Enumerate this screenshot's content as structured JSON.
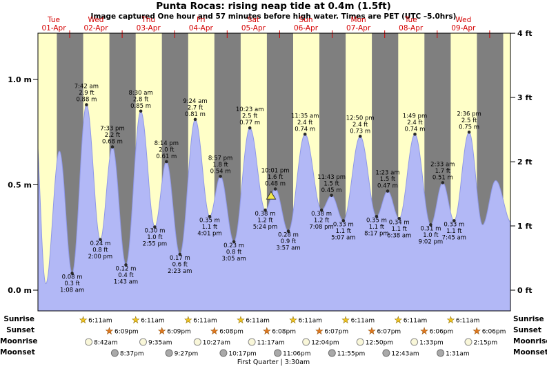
{
  "title": "Punta Rocas: rising  neap tide at 0.4m (1.5ft)",
  "subtitle": "Image captured One hour and 57 minutes before high water. Times are PET (UTC –5.0hrs)",
  "colors": {
    "night_band": "#7f7f7f",
    "day_band": "#ffffc8",
    "tide_fill": "#b2b8f6",
    "tide_stroke": "#8f98e8",
    "day_label_red": "#d40000",
    "text": "#000000",
    "marker_yellow": "#f2e84b",
    "sunrise_star": "#f0c420",
    "sunset_star": "#e07820",
    "moonrise_circle": "#f9f7d9",
    "moonset_circle": "#a9a9a9"
  },
  "chart_data": {
    "type": "area",
    "title": "Punta Rocas tide heights",
    "x_axis": {
      "days": [
        {
          "name": "Tue",
          "date": "01-Apr"
        },
        {
          "name": "Wed",
          "date": "02-Apr"
        },
        {
          "name": "Thu",
          "date": "03-Apr"
        },
        {
          "name": "Fri",
          "date": "04-Apr"
        },
        {
          "name": "Sat",
          "date": "05-Apr"
        },
        {
          "name": "Sun",
          "date": "06-Apr"
        },
        {
          "name": "Mon",
          "date": "07-Apr"
        },
        {
          "name": "Tue",
          "date": "08-Apr"
        },
        {
          "name": "Wed",
          "date": "09-Apr"
        }
      ]
    },
    "y_axis_left": {
      "unit": "m",
      "labels": [
        "0.0 m",
        "0.5 m",
        "1.0 m"
      ],
      "values": [
        0,
        0.5,
        1.0
      ]
    },
    "y_axis_right": {
      "unit": "ft",
      "labels": [
        "0 ft",
        "1 ft",
        "2 ft",
        "3 ft",
        "4 ft"
      ],
      "values": [
        0,
        1,
        2,
        3,
        4
      ]
    },
    "ylim_m": [
      -0.1,
      1.22
    ],
    "extremes": [
      {
        "day": 1,
        "time": "1:08 am",
        "type": "low",
        "m": 0.08,
        "ft": 0.3
      },
      {
        "day": 1,
        "time": "7:42 am",
        "type": "high",
        "m": 0.88,
        "ft": 2.9
      },
      {
        "day": 1,
        "time": "2:00 pm",
        "type": "low",
        "m": 0.24,
        "ft": 0.8
      },
      {
        "day": 1,
        "time": "7:33 pm",
        "type": "high",
        "m": 0.68,
        "ft": 2.2
      },
      {
        "day": 2,
        "time": "1:43 am",
        "type": "low",
        "m": 0.12,
        "ft": 0.4
      },
      {
        "day": 2,
        "time": "8:30 am",
        "type": "high",
        "m": 0.85,
        "ft": 2.8
      },
      {
        "day": 2,
        "time": "2:55 pm",
        "type": "low",
        "m": 0.3,
        "ft": 1.0
      },
      {
        "day": 2,
        "time": "8:14 pm",
        "type": "high",
        "m": 0.61,
        "ft": 2.0
      },
      {
        "day": 3,
        "time": "2:23 am",
        "type": "low",
        "m": 0.17,
        "ft": 0.6
      },
      {
        "day": 3,
        "time": "9:24 am",
        "type": "high",
        "m": 0.81,
        "ft": 2.7
      },
      {
        "day": 3,
        "time": "4:01 pm",
        "type": "low",
        "m": 0.35,
        "ft": 1.1
      },
      {
        "day": 3,
        "time": "8:57 pm",
        "type": "high",
        "m": 0.54,
        "ft": 1.8
      },
      {
        "day": 4,
        "time": "3:05 am",
        "type": "low",
        "m": 0.23,
        "ft": 0.8
      },
      {
        "day": 4,
        "time": "10:23 am",
        "type": "high",
        "m": 0.77,
        "ft": 2.5
      },
      {
        "day": 4,
        "time": "5:24 pm",
        "type": "low",
        "m": 0.38,
        "ft": 1.2
      },
      {
        "day": 4,
        "time": "10:01 pm",
        "type": "high",
        "m": 0.48,
        "ft": 1.6
      },
      {
        "day": 5,
        "time": "3:57 am",
        "type": "low",
        "m": 0.28,
        "ft": 0.9
      },
      {
        "day": 5,
        "time": "11:35 am",
        "type": "high",
        "m": 0.74,
        "ft": 2.4
      },
      {
        "day": 5,
        "time": "7:08 pm",
        "type": "low",
        "m": 0.38,
        "ft": 1.2
      },
      {
        "day": 5,
        "time": "11:43 pm",
        "type": "high",
        "m": 0.45,
        "ft": 1.5
      },
      {
        "day": 6,
        "time": "5:07 am",
        "type": "low",
        "m": 0.33,
        "ft": 1.1
      },
      {
        "day": 6,
        "time": "12:50 pm",
        "type": "high",
        "m": 0.73,
        "ft": 2.4
      },
      {
        "day": 6,
        "time": "8:17 pm",
        "type": "low",
        "m": 0.35,
        "ft": 1.1
      },
      {
        "day": 7,
        "time": "1:23 am",
        "type": "high",
        "m": 0.47,
        "ft": 1.5
      },
      {
        "day": 7,
        "time": "6:38 am",
        "type": "low",
        "m": 0.34,
        "ft": 1.1
      },
      {
        "day": 7,
        "time": "1:49 pm",
        "type": "high",
        "m": 0.74,
        "ft": 2.4
      },
      {
        "day": 7,
        "time": "9:02 pm",
        "type": "low",
        "m": 0.31,
        "ft": 1.0
      },
      {
        "day": 8,
        "time": "2:33 am",
        "type": "high",
        "m": 0.51,
        "ft": 1.7
      },
      {
        "day": 8,
        "time": "7:45 am",
        "type": "low",
        "m": 0.33,
        "ft": 1.1
      },
      {
        "day": 8,
        "time": "2:36 pm",
        "type": "high",
        "m": 0.75,
        "ft": 2.5
      }
    ],
    "shape_points": [
      {
        "day": 0,
        "time": "7:45 am",
        "m": 0.88
      },
      {
        "day": 0,
        "time": "1:05 pm",
        "m": 0.03
      },
      {
        "day": 0,
        "time": "7:20 pm",
        "m": 0.66
      },
      {
        "day": 8,
        "time": "8:45 pm",
        "m": 0.31
      },
      {
        "day": 9,
        "time": "2:45 am",
        "m": 0.52
      },
      {
        "day": 9,
        "time": "10:00 am",
        "m": 0.32
      }
    ],
    "current_marker": {
      "day": 4,
      "time": "8:04 pm",
      "m": 0.44
    },
    "daylight": {
      "sunrise_hour": 6.183,
      "sunset_hour": 18.15
    }
  },
  "astronomy": {
    "rows": [
      {
        "label": "Sunrise",
        "type": "sunrise",
        "entries": [
          {
            "day": 1,
            "time": "6:11am"
          },
          {
            "day": 2,
            "time": "6:11am"
          },
          {
            "day": 3,
            "time": "6:11am"
          },
          {
            "day": 4,
            "time": "6:11am"
          },
          {
            "day": 5,
            "time": "6:11am"
          },
          {
            "day": 6,
            "time": "6:11am"
          },
          {
            "day": 7,
            "time": "6:11am"
          },
          {
            "day": 8,
            "time": "6:11am"
          }
        ]
      },
      {
        "label": "Sunset",
        "type": "sunset",
        "entries": [
          {
            "day": 1,
            "time": "6:09pm"
          },
          {
            "day": 2,
            "time": "6:09pm"
          },
          {
            "day": 3,
            "time": "6:08pm"
          },
          {
            "day": 4,
            "time": "6:08pm"
          },
          {
            "day": 5,
            "time": "6:07pm"
          },
          {
            "day": 6,
            "time": "6:07pm"
          },
          {
            "day": 7,
            "time": "6:06pm"
          },
          {
            "day": 8,
            "time": "6:06pm"
          }
        ]
      },
      {
        "label": "Moonrise",
        "type": "moonrise",
        "entries": [
          {
            "day": 1,
            "time": "8:42am"
          },
          {
            "day": 2,
            "time": "9:35am"
          },
          {
            "day": 3,
            "time": "10:27am"
          },
          {
            "day": 4,
            "time": "11:17am"
          },
          {
            "day": 5,
            "time": "12:04pm"
          },
          {
            "day": 6,
            "time": "12:50pm"
          },
          {
            "day": 7,
            "time": "1:33pm"
          },
          {
            "day": 8,
            "time": "2:15pm"
          }
        ]
      },
      {
        "label": "Moonset",
        "type": "moonset",
        "entries": [
          {
            "day": 1,
            "time": "8:37pm"
          },
          {
            "day": 2,
            "time": "9:27pm"
          },
          {
            "day": 3,
            "time": "10:17pm"
          },
          {
            "day": 4,
            "time": "11:06pm"
          },
          {
            "day": 5,
            "time": "11:55pm"
          },
          {
            "day": 7,
            "time": "12:43am"
          },
          {
            "day": 8,
            "time": "1:31am"
          }
        ]
      }
    ],
    "moon_phase": "First Quarter | 3:30am"
  }
}
